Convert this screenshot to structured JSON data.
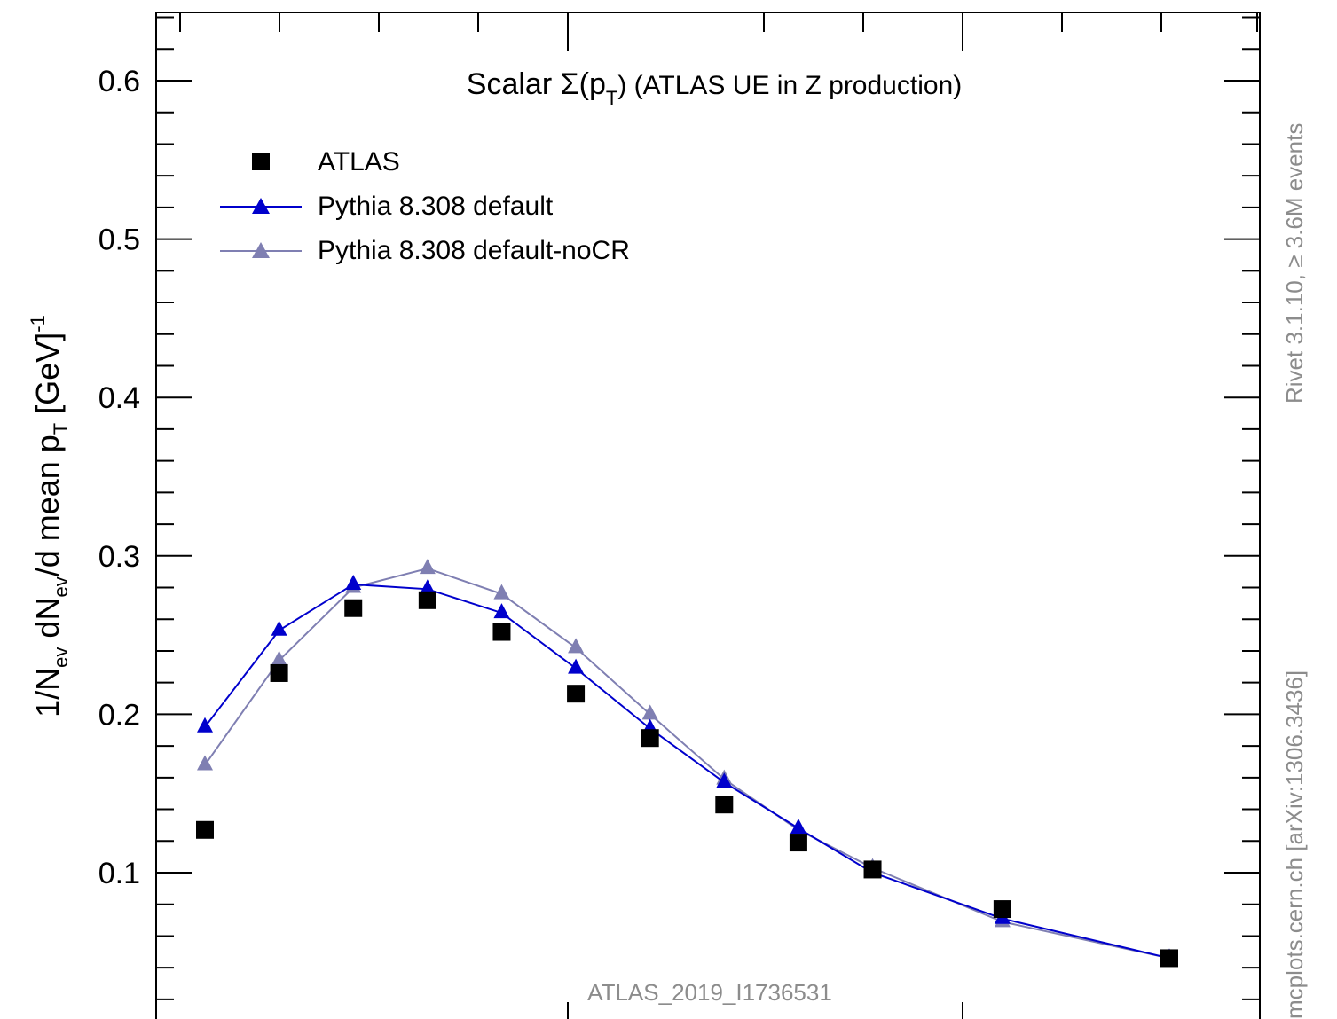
{
  "chart_data": {
    "type": "line",
    "title": "Scalar Σ(p_T) (ATLAS UE in Z production)",
    "title_parts": {
      "prefix": "Scalar Σ(p",
      "sub": "T",
      "suffix": ") (ATLAS UE in Z production)"
    },
    "ylabel_parts": {
      "p1": "1/N",
      "s1": "ev",
      "p2": " dN",
      "s2": "ev",
      "p3": "/d mean p",
      "s3": "T",
      "p4": " [GeV]",
      "sup": "-1"
    },
    "ylim": [
      0.0,
      0.6
    ],
    "yticks": [
      0.1,
      0.2,
      0.3,
      0.4,
      0.5,
      0.6
    ],
    "ytick_labels": [
      "0.1",
      "0.2",
      "0.3",
      "0.4",
      "0.5",
      "0.6"
    ],
    "legend_position": "top-left",
    "analysis_label": "ATLAS_2019_I1736531",
    "side_labels": {
      "right_top": "Rivet 3.1.10, ≥ 3.6M events",
      "right_bottom": "mcplots.cern.ch [arXiv:1306.3436]"
    },
    "series": [
      {
        "name": "ATLAS",
        "marker": "square",
        "color": "#000000",
        "x": [
          0.6,
          1.0,
          1.4,
          1.8,
          2.2,
          2.6,
          3.0,
          3.4,
          3.8,
          4.2,
          4.9,
          5.8
        ],
        "values": [
          0.127,
          0.226,
          0.267,
          0.272,
          0.252,
          0.213,
          0.185,
          0.143,
          0.119,
          0.102,
          0.077,
          0.046
        ]
      },
      {
        "name": "Pythia 8.308 default",
        "marker": "triangle",
        "color": "#0000cc",
        "x": [
          0.6,
          1.0,
          1.4,
          1.8,
          2.2,
          2.6,
          3.0,
          3.4,
          3.8,
          4.2,
          4.9,
          5.8
        ],
        "values": [
          0.192,
          0.253,
          0.282,
          0.279,
          0.264,
          0.229,
          0.191,
          0.157,
          0.128,
          0.1,
          0.071,
          0.046
        ]
      },
      {
        "name": "Pythia 8.308 default-noCR",
        "marker": "triangle",
        "color": "#7f7fb2",
        "x": [
          0.6,
          1.0,
          1.4,
          1.8,
          2.2,
          2.6,
          3.0,
          3.4,
          3.8,
          4.2,
          4.9,
          5.8
        ],
        "values": [
          0.168,
          0.234,
          0.28,
          0.292,
          0.276,
          0.242,
          0.2,
          0.159,
          0.127,
          0.103,
          0.069,
          0.046
        ]
      }
    ]
  }
}
